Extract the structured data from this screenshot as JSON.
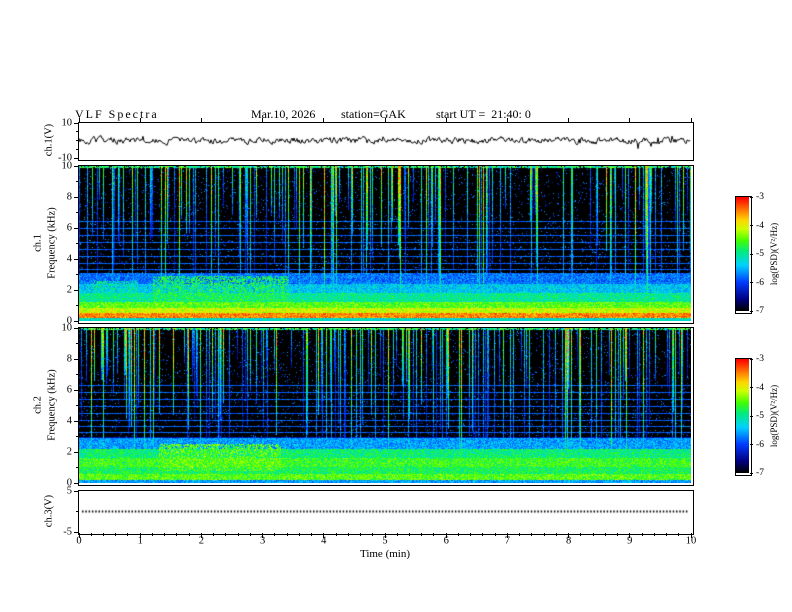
{
  "header": {
    "title": "VLF Spectra",
    "date": "Mar.10, 2026",
    "station": "station=GAK",
    "start_ut": "start UT =  21:40: 0"
  },
  "xaxis": {
    "label": "Time (min)",
    "tick_values": [
      0,
      1,
      2,
      3,
      4,
      5,
      6,
      7,
      8,
      9,
      10
    ],
    "tick_labels": [
      "0",
      "1",
      "2",
      "3",
      "4",
      "5",
      "6",
      "7",
      "8",
      "9",
      "10"
    ]
  },
  "panels": {
    "ch1_wave": {
      "ylabel": "ch.1(V)",
      "ylim": [
        -10,
        10
      ],
      "ytick_values": [
        10,
        -10
      ],
      "ytick_labels": [
        "10",
        "-10"
      ]
    },
    "spec1": {
      "channel": "ch.1",
      "axis": "Frequency (kHz)",
      "ylim": [
        0,
        10
      ],
      "ytick_values": [
        10,
        8,
        6,
        4,
        2,
        0
      ],
      "ytick_labels": [
        "10",
        "8",
        "6",
        "4",
        "2",
        "0"
      ]
    },
    "spec2": {
      "channel": "ch.2",
      "axis": "Frequency (kHz)",
      "ylim": [
        0,
        10
      ],
      "ytick_values": [
        10,
        8,
        6,
        4,
        2,
        0
      ],
      "ytick_labels": [
        "10",
        "8",
        "6",
        "4",
        "2",
        "0"
      ]
    },
    "ch3_wave": {
      "ylabel": "ch.3(V)",
      "ylim": [
        -5,
        5
      ],
      "ytick_values": [
        5,
        -5
      ],
      "ytick_labels": [
        "5",
        "-5"
      ]
    }
  },
  "colorbar": {
    "label": "log(PSD)(V²/Hz)",
    "tick_labels": [
      "-3",
      "-4",
      "-5",
      "-6",
      "-7"
    ],
    "range": [
      -7,
      -3
    ]
  },
  "chart_data": [
    {
      "type": "line",
      "name": "ch1_waveform",
      "xlim": [
        0,
        10
      ],
      "ylim": [
        -10,
        10
      ],
      "xlabel": "Time (min)",
      "ylabel": "ch.1(V)",
      "description": "broadband noise waveform fluctuating about 0 V, typical excursions ±3 V with brief spikes to about ±6 V"
    },
    {
      "type": "heatmap",
      "name": "ch1_spectrogram",
      "xlim": [
        0,
        10
      ],
      "ylim": [
        0,
        10
      ],
      "xlabel": "Time (min)",
      "ylabel": "Frequency (kHz)",
      "value_label": "log(PSD)(V²/Hz)",
      "value_range": [
        -7,
        -3
      ],
      "background_psd": -7,
      "bands": [
        {
          "f": [
            0,
            0.18
          ],
          "psd": -5.2
        },
        {
          "f": [
            0.18,
            0.5
          ],
          "psd": -3.5
        },
        {
          "f": [
            0.5,
            0.85
          ],
          "psd": -4.1
        },
        {
          "f": [
            0.85,
            1.25
          ],
          "psd": -4.5
        },
        {
          "f": [
            1.25,
            1.8
          ],
          "psd": -5.0
        },
        {
          "f": [
            1.8,
            2.4
          ],
          "psd": -5.4
        },
        {
          "f": [
            2.4,
            3.1
          ],
          "psd": -5.8
        }
      ],
      "interference_lines_khz": [
        2.05,
        2.5,
        2.9,
        3.3,
        3.7,
        4.15,
        4.6,
        5.05,
        5.5,
        5.95,
        6.4
      ],
      "line_psd": -5.85,
      "blobs": [
        {
          "t": [
            1.2,
            3.4
          ],
          "f": [
            1.2,
            2.9
          ],
          "psd": -4.8
        },
        {
          "t": [
            0.2,
            0.95
          ],
          "f": [
            1.4,
            2.6
          ],
          "psd": -5.1
        }
      ],
      "sferics": "dense vertical streaks descending from 10 kHz (cyan/green, occasionally yellow), typical depth 2-10 kHz"
    },
    {
      "type": "heatmap",
      "name": "ch2_spectrogram",
      "xlim": [
        0,
        10
      ],
      "ylim": [
        0,
        10
      ],
      "xlabel": "Time (min)",
      "ylabel": "Frequency (kHz)",
      "value_label": "log(PSD)(V²/Hz)",
      "value_range": [
        -7,
        -3
      ],
      "background_psd": -7,
      "bands": [
        {
          "f": [
            0,
            0.2
          ],
          "psd": -5.6
        },
        {
          "f": [
            0.2,
            0.55
          ],
          "psd": -4.5
        },
        {
          "f": [
            0.55,
            1.0
          ],
          "psd": -4.8
        },
        {
          "f": [
            1.0,
            1.6
          ],
          "psd": -4.6
        },
        {
          "f": [
            1.6,
            2.2
          ],
          "psd": -4.9
        },
        {
          "f": [
            2.2,
            2.9
          ],
          "psd": -5.6
        }
      ],
      "interference_lines_khz": [
        2.45,
        2.85,
        3.25,
        3.65,
        4.05,
        4.5,
        4.95,
        5.4,
        5.85,
        6.3
      ],
      "line_psd": -5.85,
      "blobs": [
        {
          "t": [
            1.3,
            3.3
          ],
          "f": [
            0.8,
            2.5
          ],
          "psd": -4.5
        },
        {
          "t": [
            0.2,
            0.9
          ],
          "f": [
            1.0,
            2.2
          ],
          "psd": -5.0
        }
      ],
      "sferics": "dense vertical streaks descending from 10 kHz, green/cyan, many reaching 4-6 kHz"
    },
    {
      "type": "line",
      "name": "ch3_waveform",
      "xlim": [
        0,
        10
      ],
      "ylim": [
        -5,
        5
      ],
      "xlabel": "Time (min)",
      "ylabel": "ch.3(V)",
      "description": "flat dotted black trace constant at 0 V"
    }
  ]
}
